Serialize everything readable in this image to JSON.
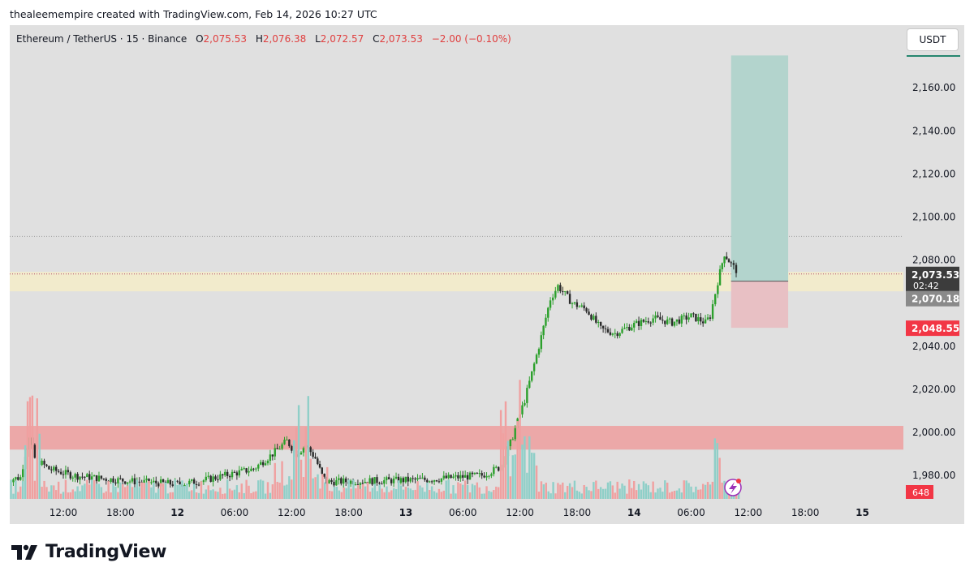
{
  "header": {
    "attribution": "thealeemempire created with TradingView.com, Feb 14, 2026 10:27 UTC"
  },
  "legend": {
    "symbol": "Ethereum / TetherUS · 15 · Binance",
    "o_label": "O",
    "o_value": "2,075.53",
    "h_label": "H",
    "h_value": "2,076.38",
    "l_label": "L",
    "l_value": "2,072.57",
    "c_label": "C",
    "c_value": "2,073.53",
    "change": "−2.00 (−0.10%)"
  },
  "currency_button": "USDT",
  "brand": {
    "name": "TradingView"
  },
  "colors": {
    "up": "#26a69a",
    "up_candle": "#2ca02c",
    "down": "#333333",
    "accent_red": "#f23645",
    "panel": "#e0e0e0"
  },
  "chart_data": {
    "type": "candlestick",
    "symbol": "ETHUSDT",
    "interval": "15",
    "ylim": [
      1972,
      2175
    ],
    "price_ticks": [
      "2,160.00",
      "2,140.00",
      "2,120.00",
      "2,100.00",
      "2,080.00",
      "2,040.00",
      "2,020.00",
      "2,000.00",
      "1,980.00"
    ],
    "price_tick_values": [
      2160,
      2140,
      2120,
      2100,
      2080,
      2040,
      2020,
      2000,
      1980
    ],
    "time_ticks": [
      "12:00",
      "18:00",
      "12",
      "06:00",
      "12:00",
      "18:00",
      "13",
      "06:00",
      "12:00",
      "18:00",
      "14",
      "06:00",
      "12:00",
      "18:00",
      "15"
    ],
    "time_tick_hours": [
      12,
      18,
      24,
      30,
      36,
      42,
      48,
      54,
      60,
      66,
      72,
      78,
      84,
      90,
      96
    ],
    "price_labels": {
      "last": "2,073.53",
      "countdown": "02:42",
      "entry": "2,070.18",
      "stop": "2,048.55",
      "volume": "648"
    },
    "levels": {
      "last": 2073.53,
      "entry": 2070.18,
      "stop": 2048.55,
      "high_line": 2091.0,
      "target": 2175.0
    },
    "zones": [
      {
        "name": "supply-band",
        "from": 2065.5,
        "to": 2074.5,
        "color": "#f2ebcc"
      },
      {
        "name": "demand-band",
        "from": 1992,
        "to": 2003,
        "color": "#eca8a8"
      }
    ],
    "trade_box": {
      "start_hour": 82.2,
      "end_hour": 88.2
    },
    "series": [
      {
        "name": "ETHUSDT 15",
        "segments": [
          {
            "from_hour": 6.0,
            "to_hour": 15.0,
            "start": 1978.0,
            "waypoints": [
              [
                7.5,
                1979
              ],
              [
                8.0,
                1990
              ],
              [
                8.5,
                1997
              ],
              [
                9.0,
                1988
              ],
              [
                10.5,
                1983
              ],
              [
                13.0,
                1980
              ],
              [
                15.0,
                1979
              ]
            ]
          },
          {
            "from_hour": 15.0,
            "to_hour": 26.0,
            "start": 1979.0,
            "waypoints": [
              [
                20,
                1977
              ],
              [
                24,
                1976
              ],
              [
                26,
                1977
              ]
            ]
          },
          {
            "from_hour": 26.0,
            "to_hour": 37.5,
            "start": 1977.0,
            "waypoints": [
              [
                28,
                1979
              ],
              [
                30,
                1981
              ],
              [
                32,
                1983
              ],
              [
                34,
                1990
              ],
              [
                35.5,
                1996
              ],
              [
                36.5,
                1990
              ],
              [
                37.5,
                1994
              ]
            ]
          },
          {
            "from_hour": 37.5,
            "to_hour": 39.7,
            "start": 1994.0,
            "waypoints": [
              [
                38.5,
                1988
              ],
              [
                39.2,
                1980
              ],
              [
                39.7,
                1977
              ]
            ]
          },
          {
            "from_hour": 39.7,
            "to_hour": 58.0,
            "start": 1977.0,
            "waypoints": [
              [
                50,
                1978
              ],
              [
                56,
                1980
              ],
              [
                58,
                1984
              ]
            ]
          },
          {
            "from_hour": 58.0,
            "to_hour": 64.0,
            "start": 1984.0,
            "waypoints": [
              [
                59,
                1995
              ],
              [
                60.5,
                2015
              ],
              [
                62,
                2040
              ],
              [
                63.2,
                2062
              ],
              [
                64,
                2068
              ]
            ]
          },
          {
            "from_hour": 64.0,
            "to_hour": 80.0,
            "start": 2068.0,
            "waypoints": [
              [
                65.5,
                2060
              ],
              [
                67,
                2057
              ],
              [
                68.5,
                2048
              ],
              [
                70,
                2046
              ],
              [
                72,
                2050
              ],
              [
                74,
                2053
              ],
              [
                76,
                2051
              ],
              [
                78,
                2054
              ],
              [
                79.5,
                2051
              ],
              [
                80,
                2054
              ]
            ]
          },
          {
            "from_hour": 80.0,
            "to_hour": 83.0,
            "start": 2054.0,
            "waypoints": [
              [
                80.8,
                2070
              ],
              [
                81.5,
                2083
              ],
              [
                82.2,
                2078
              ],
              [
                83,
                2074
              ]
            ]
          }
        ]
      }
    ],
    "volume_spikes_hours": [
      8.2,
      8.6,
      9.3,
      36.5,
      37.7,
      58.3,
      60.0,
      80.7
    ]
  }
}
